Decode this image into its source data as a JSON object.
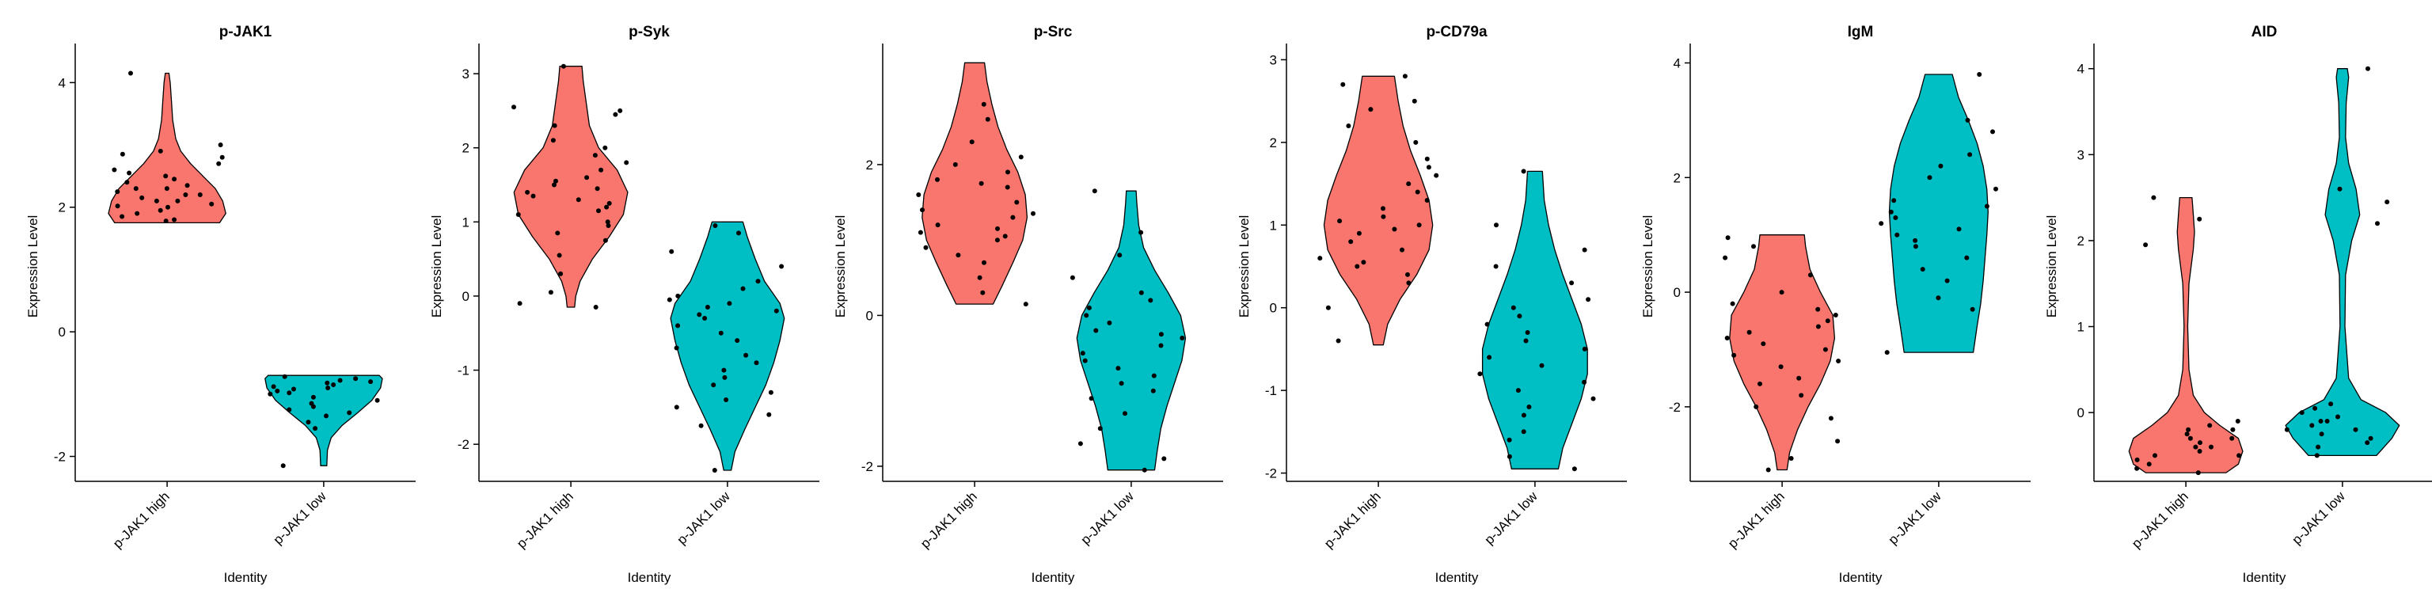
{
  "figure": {
    "background": "#ffffff"
  },
  "colors": {
    "high": "#F8766D",
    "low": "#00BFC4"
  },
  "chart_data": [
    {
      "type": "violin",
      "title": "p-JAK1",
      "xlabel": "Identity",
      "ylabel": "Expression Level",
      "categories": [
        "p-JAK1 high",
        "p-JAK1 low"
      ],
      "ylim": [
        -2.4,
        4.5
      ],
      "yticks": [
        -2,
        0,
        2,
        4
      ],
      "series": [
        {
          "category": "p-JAK1 high",
          "min": 1.75,
          "max": 4.15,
          "density": [
            [
              1.75,
              0.85
            ],
            [
              1.9,
              0.95
            ],
            [
              2.1,
              0.9
            ],
            [
              2.3,
              0.78
            ],
            [
              2.5,
              0.58
            ],
            [
              2.7,
              0.38
            ],
            [
              2.9,
              0.22
            ],
            [
              3.1,
              0.14
            ],
            [
              3.4,
              0.09
            ],
            [
              3.7,
              0.07
            ],
            [
              4.0,
              0.05
            ],
            [
              4.15,
              0.03
            ]
          ],
          "points": [
            1.78,
            1.8,
            1.85,
            1.9,
            1.95,
            2.0,
            2.02,
            2.05,
            2.1,
            2.1,
            2.15,
            2.2,
            2.2,
            2.25,
            2.3,
            2.3,
            2.35,
            2.4,
            2.45,
            2.5,
            2.55,
            2.6,
            2.7,
            2.8,
            2.85,
            2.9,
            3.0,
            4.15
          ]
        },
        {
          "category": "p-JAK1 low",
          "min": -2.15,
          "max": -0.7,
          "density": [
            [
              -2.15,
              0.05
            ],
            [
              -1.9,
              0.06
            ],
            [
              -1.7,
              0.12
            ],
            [
              -1.5,
              0.3
            ],
            [
              -1.3,
              0.55
            ],
            [
              -1.1,
              0.78
            ],
            [
              -0.9,
              0.92
            ],
            [
              -0.75,
              0.95
            ],
            [
              -0.7,
              0.9
            ]
          ],
          "points": [
            -0.72,
            -0.75,
            -0.78,
            -0.8,
            -0.82,
            -0.85,
            -0.88,
            -0.9,
            -0.92,
            -0.95,
            -0.98,
            -1.0,
            -1.05,
            -1.1,
            -1.15,
            -1.2,
            -1.25,
            -1.3,
            -1.35,
            -1.45,
            -1.55,
            -2.15
          ]
        }
      ]
    },
    {
      "type": "violin",
      "title": "p-Syk",
      "xlabel": "Identity",
      "ylabel": "Expression Level",
      "categories": [
        "p-JAK1 high",
        "p-JAK1 low"
      ],
      "ylim": [
        -2.5,
        3.3
      ],
      "yticks": [
        -2,
        -1,
        0,
        1,
        2,
        3
      ],
      "series": [
        {
          "category": "p-JAK1 high",
          "min": -0.15,
          "max": 3.1,
          "density": [
            [
              -0.15,
              0.06
            ],
            [
              0.0,
              0.08
            ],
            [
              0.2,
              0.15
            ],
            [
              0.5,
              0.35
            ],
            [
              0.8,
              0.62
            ],
            [
              1.1,
              0.85
            ],
            [
              1.4,
              0.92
            ],
            [
              1.7,
              0.75
            ],
            [
              2.0,
              0.45
            ],
            [
              2.3,
              0.3
            ],
            [
              2.6,
              0.25
            ],
            [
              2.9,
              0.2
            ],
            [
              3.1,
              0.18
            ]
          ],
          "points": [
            -0.15,
            -0.1,
            0.05,
            0.3,
            0.55,
            0.75,
            0.85,
            0.95,
            1.0,
            1.1,
            1.15,
            1.2,
            1.25,
            1.3,
            1.35,
            1.4,
            1.45,
            1.5,
            1.55,
            1.6,
            1.7,
            1.8,
            1.9,
            2.0,
            2.1,
            2.3,
            2.45,
            2.5,
            2.55,
            3.1
          ]
        },
        {
          "category": "p-JAK1 low",
          "min": -2.35,
          "max": 1.0,
          "density": [
            [
              -2.35,
              0.06
            ],
            [
              -2.1,
              0.12
            ],
            [
              -1.8,
              0.28
            ],
            [
              -1.5,
              0.45
            ],
            [
              -1.2,
              0.62
            ],
            [
              -0.9,
              0.75
            ],
            [
              -0.6,
              0.85
            ],
            [
              -0.3,
              0.92
            ],
            [
              -0.1,
              0.85
            ],
            [
              0.2,
              0.6
            ],
            [
              0.5,
              0.45
            ],
            [
              0.8,
              0.32
            ],
            [
              1.0,
              0.25
            ]
          ],
          "points": [
            -2.35,
            -1.75,
            -1.6,
            -1.5,
            -1.4,
            -1.3,
            -1.2,
            -1.1,
            -1.0,
            -0.9,
            -0.8,
            -0.7,
            -0.6,
            -0.5,
            -0.4,
            -0.3,
            -0.25,
            -0.2,
            -0.15,
            -0.1,
            -0.05,
            0.0,
            0.1,
            0.2,
            0.4,
            0.6,
            0.85,
            0.95
          ]
        }
      ]
    },
    {
      "type": "violin",
      "title": "p-Src",
      "xlabel": "Identity",
      "ylabel": "Expression Level",
      "categories": [
        "p-JAK1 high",
        "p-JAK1 low"
      ],
      "ylim": [
        -2.2,
        3.5
      ],
      "yticks": [
        -2,
        0,
        2
      ],
      "series": [
        {
          "category": "p-JAK1 high",
          "min": 0.15,
          "max": 3.35,
          "density": [
            [
              0.15,
              0.3
            ],
            [
              0.4,
              0.45
            ],
            [
              0.7,
              0.62
            ],
            [
              1.0,
              0.78
            ],
            [
              1.3,
              0.85
            ],
            [
              1.6,
              0.82
            ],
            [
              1.9,
              0.7
            ],
            [
              2.2,
              0.52
            ],
            [
              2.5,
              0.38
            ],
            [
              2.8,
              0.28
            ],
            [
              3.1,
              0.2
            ],
            [
              3.35,
              0.16
            ]
          ],
          "points": [
            0.15,
            0.3,
            0.5,
            0.7,
            0.8,
            0.9,
            1.0,
            1.05,
            1.1,
            1.15,
            1.2,
            1.3,
            1.35,
            1.4,
            1.5,
            1.6,
            1.7,
            1.75,
            1.8,
            1.9,
            2.0,
            2.1,
            2.3,
            2.6,
            2.8
          ]
        },
        {
          "category": "p-JAK1 low",
          "min": -2.05,
          "max": 1.65,
          "density": [
            [
              -2.05,
              0.38
            ],
            [
              -1.8,
              0.42
            ],
            [
              -1.5,
              0.48
            ],
            [
              -1.2,
              0.58
            ],
            [
              -0.9,
              0.7
            ],
            [
              -0.6,
              0.82
            ],
            [
              -0.3,
              0.88
            ],
            [
              0.0,
              0.8
            ],
            [
              0.3,
              0.6
            ],
            [
              0.6,
              0.38
            ],
            [
              0.9,
              0.2
            ],
            [
              1.2,
              0.12
            ],
            [
              1.5,
              0.09
            ],
            [
              1.65,
              0.08
            ]
          ],
          "points": [
            -2.05,
            -1.9,
            -1.7,
            -1.5,
            -1.3,
            -1.1,
            -1.0,
            -0.9,
            -0.8,
            -0.7,
            -0.6,
            -0.5,
            -0.4,
            -0.3,
            -0.25,
            -0.2,
            -0.1,
            0.0,
            0.1,
            0.2,
            0.3,
            0.5,
            0.8,
            1.1,
            1.65
          ]
        }
      ]
    },
    {
      "type": "violin",
      "title": "p-CD79a",
      "xlabel": "Identity",
      "ylabel": "Expression Level",
      "categories": [
        "p-JAK1 high",
        "p-JAK1 low"
      ],
      "ylim": [
        -2.1,
        3.1
      ],
      "yticks": [
        -2,
        -1,
        0,
        1,
        2,
        3
      ],
      "series": [
        {
          "category": "p-JAK1 high",
          "min": -0.45,
          "max": 2.8,
          "density": [
            [
              -0.45,
              0.08
            ],
            [
              -0.2,
              0.15
            ],
            [
              0.1,
              0.35
            ],
            [
              0.4,
              0.62
            ],
            [
              0.7,
              0.82
            ],
            [
              1.0,
              0.88
            ],
            [
              1.3,
              0.82
            ],
            [
              1.6,
              0.68
            ],
            [
              1.9,
              0.52
            ],
            [
              2.2,
              0.4
            ],
            [
              2.5,
              0.32
            ],
            [
              2.8,
              0.26
            ]
          ],
          "points": [
            -0.4,
            0.0,
            0.3,
            0.4,
            0.5,
            0.55,
            0.6,
            0.7,
            0.8,
            0.9,
            0.95,
            1.0,
            1.05,
            1.1,
            1.2,
            1.3,
            1.4,
            1.5,
            1.6,
            1.7,
            1.8,
            2.0,
            2.2,
            2.4,
            2.5,
            2.7,
            2.8
          ]
        },
        {
          "category": "p-JAK1 low",
          "min": -1.95,
          "max": 1.65,
          "density": [
            [
              -1.95,
              0.38
            ],
            [
              -1.7,
              0.45
            ],
            [
              -1.4,
              0.6
            ],
            [
              -1.1,
              0.75
            ],
            [
              -0.8,
              0.85
            ],
            [
              -0.5,
              0.85
            ],
            [
              -0.2,
              0.75
            ],
            [
              0.1,
              0.6
            ],
            [
              0.4,
              0.45
            ],
            [
              0.7,
              0.32
            ],
            [
              1.0,
              0.22
            ],
            [
              1.3,
              0.15
            ],
            [
              1.65,
              0.12
            ]
          ],
          "points": [
            -1.95,
            -1.8,
            -1.6,
            -1.5,
            -1.3,
            -1.2,
            -1.1,
            -1.0,
            -0.9,
            -0.8,
            -0.7,
            -0.6,
            -0.5,
            -0.4,
            -0.3,
            -0.2,
            -0.1,
            0.0,
            0.1,
            0.3,
            0.5,
            0.7,
            1.0,
            1.65
          ]
        }
      ]
    },
    {
      "type": "violin",
      "title": "IgM",
      "xlabel": "Identity",
      "ylabel": "Expression Level",
      "categories": [
        "p-JAK1 high",
        "p-JAK1 low"
      ],
      "ylim": [
        -3.3,
        4.2
      ],
      "yticks": [
        -2,
        0,
        2,
        4
      ],
      "series": [
        {
          "category": "p-JAK1 high",
          "min": -3.1,
          "max": 1.0,
          "density": [
            [
              -3.1,
              0.08
            ],
            [
              -2.8,
              0.12
            ],
            [
              -2.4,
              0.25
            ],
            [
              -2.0,
              0.42
            ],
            [
              -1.6,
              0.62
            ],
            [
              -1.2,
              0.78
            ],
            [
              -0.8,
              0.85
            ],
            [
              -0.4,
              0.82
            ],
            [
              0.0,
              0.62
            ],
            [
              0.4,
              0.45
            ],
            [
              0.8,
              0.38
            ],
            [
              1.0,
              0.36
            ]
          ],
          "points": [
            -3.1,
            -2.9,
            -2.6,
            -2.2,
            -2.0,
            -1.8,
            -1.6,
            -1.5,
            -1.3,
            -1.2,
            -1.1,
            -1.0,
            -0.9,
            -0.8,
            -0.7,
            -0.6,
            -0.5,
            -0.4,
            -0.3,
            -0.2,
            0.0,
            0.3,
            0.6,
            0.8,
            0.95
          ]
        },
        {
          "category": "p-JAK1 low",
          "min": -1.05,
          "max": 3.8,
          "density": [
            [
              -1.05,
              0.56
            ],
            [
              -0.6,
              0.62
            ],
            [
              -0.2,
              0.68
            ],
            [
              0.2,
              0.72
            ],
            [
              0.6,
              0.75
            ],
            [
              1.0,
              0.78
            ],
            [
              1.4,
              0.8
            ],
            [
              1.8,
              0.78
            ],
            [
              2.2,
              0.72
            ],
            [
              2.6,
              0.62
            ],
            [
              3.0,
              0.48
            ],
            [
              3.4,
              0.32
            ],
            [
              3.8,
              0.22
            ]
          ],
          "points": [
            -1.05,
            -0.3,
            -0.1,
            0.2,
            0.4,
            0.6,
            0.8,
            0.9,
            1.0,
            1.1,
            1.2,
            1.3,
            1.4,
            1.5,
            1.6,
            1.8,
            2.0,
            2.2,
            2.4,
            2.8,
            3.0,
            3.8
          ]
        }
      ]
    },
    {
      "type": "violin",
      "title": "AID",
      "xlabel": "Identity",
      "ylabel": "Expression Level",
      "categories": [
        "p-JAK1 high",
        "p-JAK1 low"
      ],
      "ylim": [
        -0.8,
        4.2
      ],
      "yticks": [
        0,
        1,
        2,
        3,
        4
      ],
      "series": [
        {
          "category": "p-JAK1 high",
          "min": -0.7,
          "max": 2.5,
          "density": [
            [
              -0.7,
              0.65
            ],
            [
              -0.6,
              0.85
            ],
            [
              -0.45,
              0.92
            ],
            [
              -0.3,
              0.85
            ],
            [
              -0.15,
              0.55
            ],
            [
              0.0,
              0.3
            ],
            [
              0.2,
              0.12
            ],
            [
              0.5,
              0.05
            ],
            [
              1.0,
              0.03
            ],
            [
              1.5,
              0.05
            ],
            [
              1.9,
              0.12
            ],
            [
              2.1,
              0.14
            ],
            [
              2.3,
              0.12
            ],
            [
              2.5,
              0.1
            ]
          ],
          "points": [
            -0.7,
            -0.65,
            -0.6,
            -0.55,
            -0.5,
            -0.5,
            -0.45,
            -0.4,
            -0.4,
            -0.35,
            -0.3,
            -0.3,
            -0.25,
            -0.2,
            -0.2,
            -0.15,
            -0.1,
            1.95,
            2.25,
            2.5
          ]
        },
        {
          "category": "p-JAK1 low",
          "min": -0.5,
          "max": 4.0,
          "density": [
            [
              -0.5,
              0.55
            ],
            [
              -0.3,
              0.8
            ],
            [
              -0.15,
              0.92
            ],
            [
              0.0,
              0.7
            ],
            [
              0.15,
              0.3
            ],
            [
              0.4,
              0.1
            ],
            [
              1.0,
              0.04
            ],
            [
              1.6,
              0.05
            ],
            [
              2.0,
              0.15
            ],
            [
              2.3,
              0.28
            ],
            [
              2.6,
              0.22
            ],
            [
              2.9,
              0.1
            ],
            [
              3.2,
              0.05
            ],
            [
              3.6,
              0.06
            ],
            [
              3.9,
              0.1
            ],
            [
              4.0,
              0.08
            ]
          ],
          "points": [
            -0.5,
            -0.4,
            -0.35,
            -0.3,
            -0.25,
            -0.2,
            -0.2,
            -0.15,
            -0.1,
            -0.1,
            -0.05,
            0.0,
            0.05,
            0.1,
            2.2,
            2.45,
            2.6,
            4.0
          ]
        }
      ]
    }
  ]
}
